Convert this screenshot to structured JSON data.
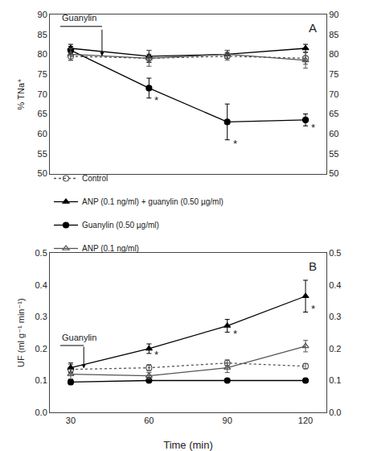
{
  "chart_data": [
    {
      "type": "line",
      "title": "A",
      "ylabel": "% TNa⁺",
      "x": [
        30,
        60,
        90,
        120
      ],
      "xlim": [
        22,
        128
      ],
      "xticks": [
        30,
        60,
        90,
        120
      ],
      "ylim": [
        50,
        90
      ],
      "yticks": [
        50,
        55,
        60,
        65,
        70,
        75,
        80,
        85,
        90
      ],
      "y2lim": [
        50,
        90
      ],
      "y2ticks": [
        50,
        55,
        60,
        65,
        70,
        75,
        80,
        85,
        90
      ],
      "grid": false,
      "tick_labels": "y",
      "series": [
        {
          "name": "Control",
          "color": "#555555",
          "line_style": "dotted",
          "marker": "circle-open",
          "values": [
            79.5,
            79.0,
            79.5,
            79.0
          ],
          "errors": [
            1.0,
            1.0,
            1.0,
            1.5
          ]
        },
        {
          "name": "ANP (0.1 ng/ml) + guanylin (0.50 µg/ml)",
          "color": "#000000",
          "line_style": "solid",
          "marker": "triangle-up",
          "values": [
            81.5,
            79.5,
            80.0,
            81.5
          ],
          "errors": [
            1.0,
            1.5,
            1.0,
            1.0
          ]
        },
        {
          "name": "Guanylin (0.50 µg/ml)",
          "color": "#000000",
          "line_style": "solid",
          "marker": "circle",
          "values": [
            81.0,
            71.5,
            63.0,
            63.5
          ],
          "errors": [
            1.0,
            2.5,
            4.5,
            1.5
          ]
        },
        {
          "name": "ANP (0.1 ng/ml)",
          "color": "#555555",
          "line_style": "solid",
          "marker": "triangle-up-open",
          "values": [
            80.0,
            79.0,
            80.0,
            78.5
          ],
          "errors": [
            1.5,
            2.0,
            1.0,
            2.0
          ]
        }
      ],
      "annotations": [
        {
          "text": "*",
          "x": 60,
          "y": 68.5
        },
        {
          "text": "*",
          "x": 90,
          "y": 57.5
        },
        {
          "text": "*",
          "x": 120,
          "y": 61.5
        },
        {
          "text": "Guanylin",
          "x": 26,
          "y": 87.5,
          "line": [
            [
              26,
              87.0
            ],
            [
              42,
              87.0
            ]
          ],
          "arrow": [
            [
              42,
              86.5
            ],
            [
              42,
              79.5
            ]
          ]
        }
      ]
    },
    {
      "type": "line",
      "title": "B",
      "ylabel": "UF (ml g⁻¹ min⁻¹)",
      "xlabel": "Time (min)",
      "x": [
        30,
        60,
        90,
        120
      ],
      "xlim": [
        22,
        128
      ],
      "xticks": [
        30,
        60,
        90,
        120
      ],
      "ylim": [
        0.0,
        0.5
      ],
      "yticks": [
        {
          "value": 0.0,
          "label": "0.0"
        },
        {
          "value": 0.1,
          "label": "0.1"
        },
        {
          "value": 0.2,
          "label": "0.2"
        },
        {
          "value": 0.3,
          "label": "0.3"
        },
        {
          "value": 0.4,
          "label": "0.4"
        },
        {
          "value": 0.5,
          "label": "0.5"
        }
      ],
      "y2lim": [
        0.0,
        0.5
      ],
      "y2ticks": [
        {
          "value": 0.0,
          "label": "0.0"
        },
        {
          "value": 0.1,
          "label": "0.1"
        },
        {
          "value": 0.2,
          "label": "0.2"
        },
        {
          "value": 0.3,
          "label": "0.3"
        },
        {
          "value": 0.4,
          "label": "0.4"
        },
        {
          "value": 0.5,
          "label": "0.5"
        }
      ],
      "grid": false,
      "series": [
        {
          "name": "Control",
          "color": "#555555",
          "line_style": "dotted",
          "marker": "circle-open",
          "values": [
            0.135,
            0.14,
            0.155,
            0.145
          ],
          "errors": [
            0.015,
            0.01,
            0.01,
            0.008
          ]
        },
        {
          "name": "ANP (0.1 ng/ml) + guanylin (0.50 µg/ml)",
          "color": "#000000",
          "line_style": "solid",
          "marker": "triangle-up",
          "values": [
            0.14,
            0.2,
            0.272,
            0.365
          ],
          "errors": [
            0.015,
            0.015,
            0.02,
            0.05
          ]
        },
        {
          "name": "Guanylin (0.50 µg/ml)",
          "color": "#000000",
          "line_style": "solid",
          "marker": "circle",
          "values": [
            0.095,
            0.1,
            0.1,
            0.1
          ],
          "errors": [
            0.008,
            0.005,
            0.005,
            0.005
          ]
        },
        {
          "name": "ANP (0.1 ng/ml)",
          "color": "#555555",
          "line_style": "solid",
          "marker": "triangle-up-open",
          "values": [
            0.12,
            0.115,
            0.14,
            0.208
          ],
          "errors": [
            0.015,
            0.01,
            0.015,
            0.018
          ]
        }
      ],
      "annotations": [
        {
          "text": "*",
          "x": 60,
          "y": 0.18
        },
        {
          "text": "*",
          "x": 90,
          "y": 0.247
        },
        {
          "text": "*",
          "x": 120,
          "y": 0.325
        },
        {
          "text": "Guanylin",
          "x": 26,
          "y": 0.215,
          "line": [
            [
              26,
              0.21
            ],
            [
              35,
              0.21
            ]
          ],
          "arrow": [
            [
              35,
              0.21
            ],
            [
              35,
              0.138
            ]
          ]
        }
      ]
    }
  ]
}
